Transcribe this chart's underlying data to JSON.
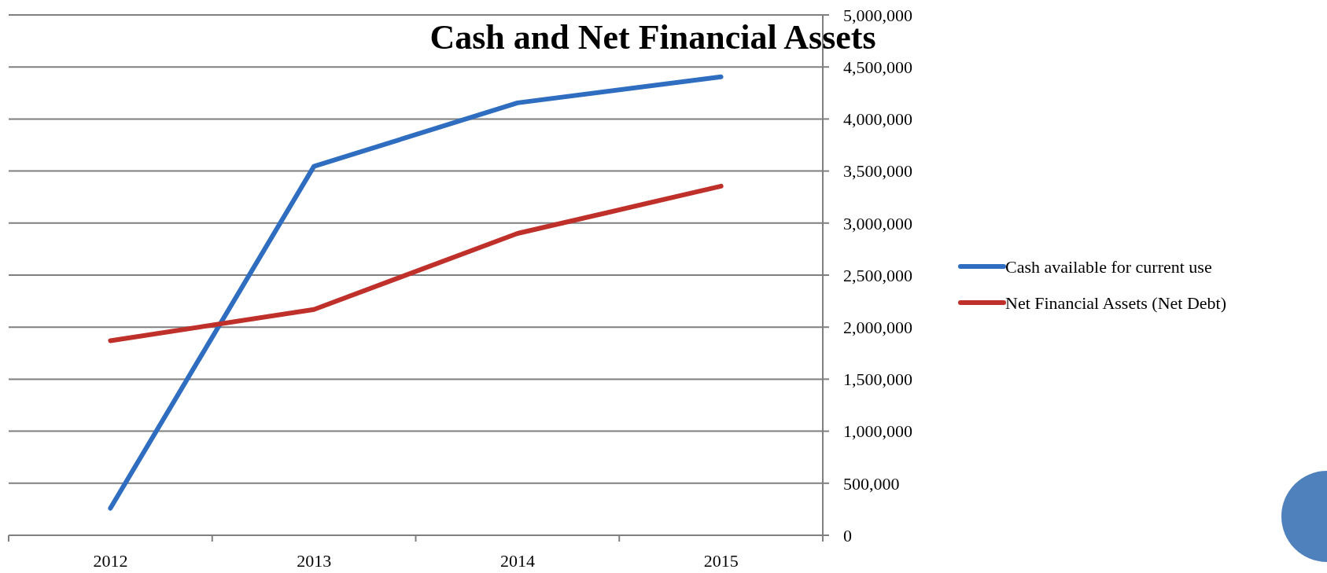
{
  "chart_data": {
    "type": "line",
    "title": "Cash and Net Financial Assets",
    "categories": [
      "2012",
      "2013",
      "2014",
      "2015"
    ],
    "series": [
      {
        "name": "Cash available for current use",
        "color": "#2e6dbf",
        "values": [
          260000,
          3545000,
          4155000,
          4405000
        ]
      },
      {
        "name": "Net Financial Assets (Net Debt)",
        "color": "#c0302b",
        "values": [
          1870000,
          2170000,
          2900000,
          3355000
        ]
      }
    ],
    "ylim": [
      0,
      5000000
    ],
    "yticks": [
      0,
      {
        "value": 500000,
        "label": "500,000"
      },
      {
        "value": 1000000,
        "label": "1,000,000"
      },
      {
        "value": 1500000,
        "label": "1,500,000"
      },
      {
        "value": 2000000,
        "label": "2,000,000"
      },
      {
        "value": 2500000,
        "label": "2,500,000"
      },
      {
        "value": 3000000,
        "label": "3,000,000"
      },
      {
        "value": 3500000,
        "label": "3,500,000"
      },
      {
        "value": 4000000,
        "label": "4,000,000"
      },
      {
        "value": 4500000,
        "label": "4,500,000"
      },
      {
        "value": 5000000,
        "label": "5,000,000"
      }
    ],
    "grid": "y",
    "legend": "right",
    "marker": "none",
    "line_style": "solid"
  }
}
